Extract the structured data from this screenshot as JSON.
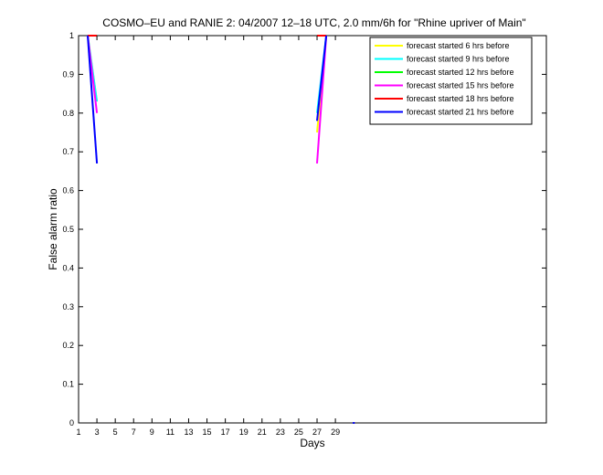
{
  "chart_data": {
    "type": "line",
    "title": "COSMO–EU and RANIE 2: 04/2007 12–18 UTC, 2.0 mm/6h for \"Rhine upriver of Main\"",
    "xlabel": "Days",
    "ylabel": "False alarm ratio",
    "xlim": [
      1,
      52
    ],
    "ylim": [
      0,
      1
    ],
    "xticks": [
      1,
      3,
      5,
      7,
      9,
      11,
      13,
      15,
      17,
      19,
      21,
      23,
      25,
      27,
      29
    ],
    "yticks": [
      0,
      0.1,
      0.2,
      0.3,
      0.4,
      0.5,
      0.6,
      0.7,
      0.8,
      0.9,
      1
    ],
    "ytick_labels": [
      "0",
      "0.1",
      "0.2",
      "0.3",
      "0.4",
      "0.5",
      "0.6",
      "0.7",
      "0.8",
      "0.9",
      "1"
    ],
    "legend_position": "top-right",
    "grid": false,
    "series": [
      {
        "name": "forecast started  6 hrs before",
        "color": "#ffff00",
        "segments": [
          [
            [
              2,
              1
            ],
            [
              3,
              0.83
            ]
          ],
          [
            [
              27,
              0.75
            ],
            [
              28,
              1
            ]
          ]
        ]
      },
      {
        "name": "forecast started  9 hrs before",
        "color": "#00ffff",
        "segments": [
          [
            [
              2,
              1
            ],
            [
              3,
              0.83
            ]
          ],
          [
            [
              27,
              0.8
            ],
            [
              28,
              1
            ]
          ]
        ]
      },
      {
        "name": "forecast started  12 hrs before",
        "color": "#00ff00",
        "segments": [
          [
            [
              2,
              1
            ],
            [
              3,
              1
            ]
          ],
          [
            [
              27,
              1
            ],
            [
              28,
              1
            ]
          ]
        ]
      },
      {
        "name": "forecast started  15 hrs before",
        "color": "#ff00ff",
        "segments": [
          [
            [
              2,
              1
            ],
            [
              3,
              0.8
            ]
          ],
          [
            [
              27,
              0.67
            ],
            [
              28,
              1
            ]
          ]
        ]
      },
      {
        "name": "forecast started  18 hrs before",
        "color": "#ff0000",
        "segments": [
          [
            [
              2,
              1
            ],
            [
              3,
              1
            ]
          ],
          [
            [
              27,
              1
            ],
            [
              28,
              1
            ]
          ]
        ]
      },
      {
        "name": "forecast started  21 hrs before",
        "color": "#0000ff",
        "segments": [
          [
            [
              2,
              1
            ],
            [
              3,
              0.67
            ]
          ],
          [
            [
              27,
              0.78
            ],
            [
              28,
              1
            ]
          ]
        ]
      }
    ],
    "markers": [
      {
        "x": 31,
        "y": 0,
        "color": "#0000ff"
      }
    ]
  }
}
